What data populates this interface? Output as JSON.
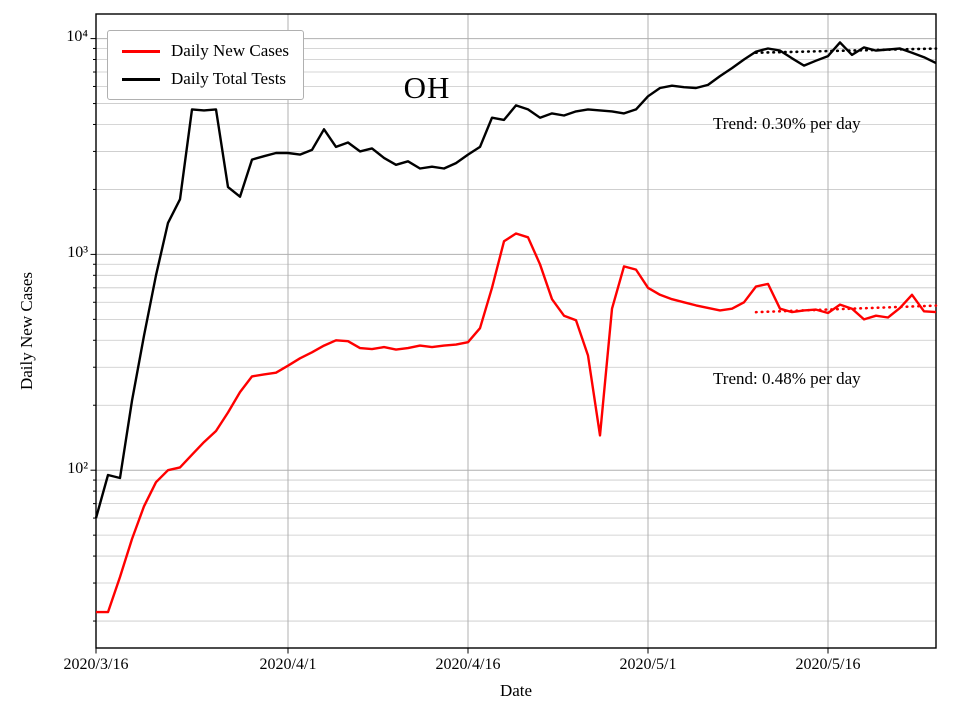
{
  "chart_data": {
    "type": "line",
    "title": "OH",
    "xlabel": "Date",
    "ylabel": "Daily New Cases",
    "y_scale": "log",
    "ylim": [
      15,
      13000
    ],
    "grid": true,
    "legend_position": "upper-left",
    "x_tick_labels": [
      "2020/3/16",
      "2020/4/1",
      "2020/4/16",
      "2020/5/1",
      "2020/5/16"
    ],
    "x_tick_indices": [
      0,
      16,
      31,
      46,
      61
    ],
    "y_tick_labels": [
      "10⁴",
      "10³",
      "10²"
    ],
    "y_tick_values": [
      10000,
      1000,
      100
    ],
    "x": [
      "2020/3/16",
      "2020/3/17",
      "2020/3/18",
      "2020/3/19",
      "2020/3/20",
      "2020/3/21",
      "2020/3/22",
      "2020/3/23",
      "2020/3/24",
      "2020/3/25",
      "2020/3/26",
      "2020/3/27",
      "2020/3/28",
      "2020/3/29",
      "2020/3/30",
      "2020/3/31",
      "2020/4/1",
      "2020/4/2",
      "2020/4/3",
      "2020/4/4",
      "2020/4/5",
      "2020/4/6",
      "2020/4/7",
      "2020/4/8",
      "2020/4/9",
      "2020/4/10",
      "2020/4/11",
      "2020/4/12",
      "2020/4/13",
      "2020/4/14",
      "2020/4/15",
      "2020/4/16",
      "2020/4/17",
      "2020/4/18",
      "2020/4/19",
      "2020/4/20",
      "2020/4/21",
      "2020/4/22",
      "2020/4/23",
      "2020/4/24",
      "2020/4/25",
      "2020/4/26",
      "2020/4/27",
      "2020/4/28",
      "2020/4/29",
      "2020/4/30",
      "2020/5/1",
      "2020/5/2",
      "2020/5/3",
      "2020/5/4",
      "2020/5/5",
      "2020/5/6",
      "2020/5/7",
      "2020/5/8",
      "2020/5/9",
      "2020/5/10",
      "2020/5/11",
      "2020/5/12",
      "2020/5/13",
      "2020/5/14",
      "2020/5/15",
      "2020/5/16",
      "2020/5/17",
      "2020/5/18",
      "2020/5/19",
      "2020/5/20",
      "2020/5/21",
      "2020/5/22",
      "2020/5/23",
      "2020/5/24",
      "2020/5/25"
    ],
    "series": [
      {
        "name": "Daily New Cases",
        "color": "#ff0000",
        "values": [
          22,
          22,
          32,
          48,
          68,
          88,
          100,
          103,
          118,
          135,
          152,
          185,
          230,
          272,
          278,
          283,
          305,
          330,
          352,
          378,
          400,
          396,
          368,
          364,
          372,
          362,
          368,
          378,
          372,
          378,
          382,
          392,
          455,
          700,
          1150,
          1250,
          1200,
          900,
          620,
          520,
          495,
          340,
          145,
          560,
          880,
          850,
          700,
          650,
          620,
          600,
          580,
          565,
          550,
          560,
          600,
          710,
          730,
          560,
          540,
          550,
          555,
          535,
          585,
          560,
          500,
          520,
          510,
          565,
          650,
          545,
          540
        ]
      },
      {
        "name": "Daily Total Tests",
        "color": "#000000",
        "values": [
          60,
          95,
          92,
          210,
          420,
          800,
          1400,
          1800,
          4700,
          4650,
          4700,
          2050,
          1850,
          2750,
          2850,
          2950,
          2950,
          2900,
          3050,
          3800,
          3150,
          3300,
          3000,
          3100,
          2800,
          2600,
          2700,
          2500,
          2550,
          2500,
          2650,
          2900,
          3150,
          4300,
          4200,
          4900,
          4700,
          4300,
          4500,
          4400,
          4600,
          4700,
          4650,
          4600,
          4500,
          4700,
          5400,
          5900,
          6050,
          5950,
          5900,
          6100,
          6700,
          7300,
          8000,
          8700,
          9000,
          8800,
          8100,
          7500,
          7900,
          8300,
          9600,
          8400,
          9100,
          8800,
          8900,
          9000,
          8600,
          8200,
          7700
        ]
      }
    ],
    "trend_lines": [
      {
        "label": "Trend: 0.30% per day",
        "series": "Daily Total Tests",
        "color": "#000000",
        "rate_percent_per_day": 0.3,
        "start_index": 55,
        "end_index": 70,
        "start_value": 8600,
        "end_value": 8990
      },
      {
        "label": "Trend: 0.48% per day",
        "series": "Daily New Cases",
        "color": "#ff0000",
        "rate_percent_per_day": 0.48,
        "start_index": 55,
        "end_index": 70,
        "start_value": 540,
        "end_value": 579
      }
    ]
  }
}
